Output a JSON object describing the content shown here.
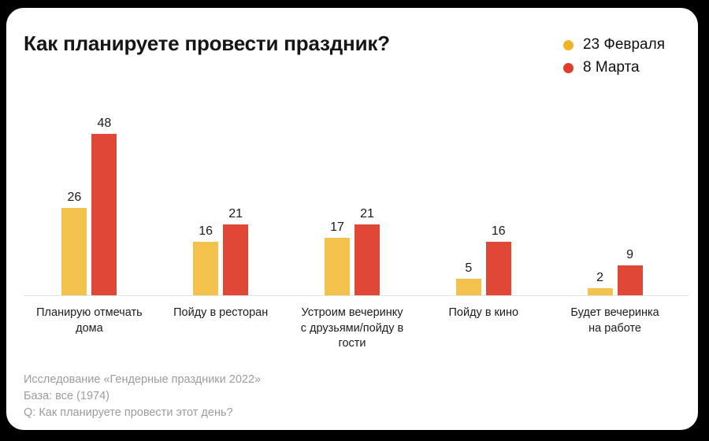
{
  "title": "Как планируете провести праздник?",
  "legend": {
    "items": [
      {
        "label": "23 Февраля",
        "color": "#F0B226"
      },
      {
        "label": "8 Марта",
        "color": "#E03E2D"
      }
    ]
  },
  "chart_data": {
    "type": "bar",
    "title": "Как планируете провести праздник?",
    "categories": [
      "Планирую отмечать дома",
      "Пойду в ресторан",
      "Устроим вечеринку\nс друзьями/пойду в гости",
      "Пойду в кино",
      "Будет вечеринка\nна работе"
    ],
    "series": [
      {
        "name": "23 Февраля",
        "color": "#F3C24D",
        "values": [
          26,
          16,
          17,
          5,
          2
        ]
      },
      {
        "name": "8 Марта",
        "color": "#DF4736",
        "values": [
          48,
          21,
          21,
          16,
          9
        ]
      }
    ],
    "xlabel": "",
    "ylabel": "",
    "ylim": [
      0,
      50
    ],
    "grid": false,
    "value_labels": true,
    "legend_position": "top-right"
  },
  "footnote": {
    "lines": [
      "Исследование «Гендерные праздники 2022»",
      "База: все (1974)",
      "Q: Как планируете провести этот день?"
    ]
  }
}
